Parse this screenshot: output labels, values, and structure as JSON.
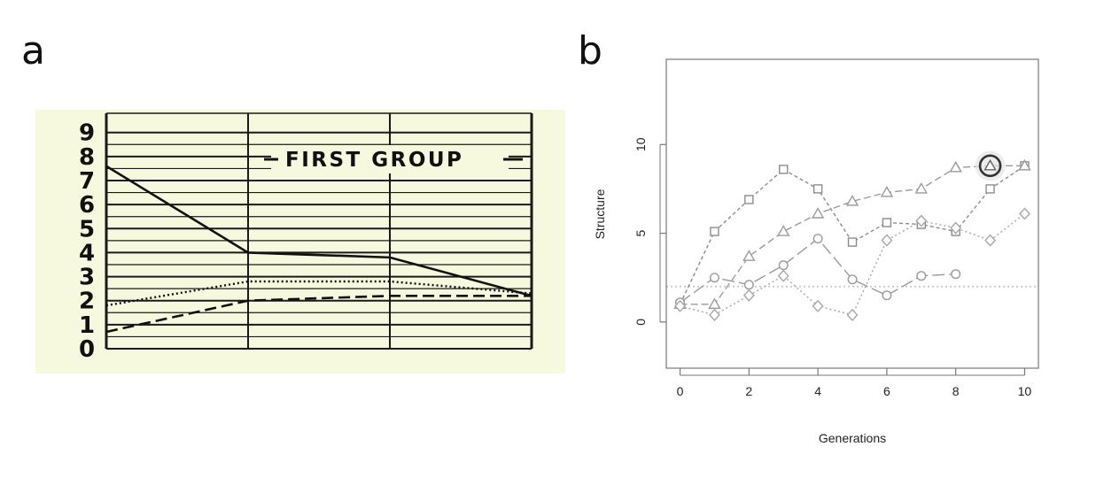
{
  "panels": {
    "a": "a",
    "b": "b"
  },
  "chart_data": [
    {
      "panel": "a",
      "type": "line",
      "title": "FIRST GROUP",
      "xlabel": "",
      "ylabel": "",
      "ylim": [
        0,
        9.8
      ],
      "y_ticks": [
        "0",
        "1",
        "2",
        "3",
        "4",
        "5",
        "6",
        "7",
        "8",
        "9"
      ],
      "x_columns": 3,
      "grid": true,
      "background": "#f6f9dd",
      "series": [
        {
          "style": "solid",
          "x": [
            0,
            1,
            2,
            3
          ],
          "values": [
            7.6,
            4.0,
            3.8,
            2.2
          ]
        },
        {
          "style": "dotted",
          "x": [
            0,
            1,
            2,
            3
          ],
          "values": [
            1.8,
            2.8,
            2.8,
            2.3
          ]
        },
        {
          "style": "dashed",
          "x": [
            0,
            1,
            2,
            3
          ],
          "values": [
            0.7,
            2.0,
            2.2,
            2.2
          ]
        }
      ]
    },
    {
      "panel": "b",
      "type": "line",
      "title": "",
      "xlabel": "Generations",
      "ylabel": "Structure",
      "xlim": [
        -0.4,
        10.4
      ],
      "ylim": [
        -2.6,
        14.8
      ],
      "x_ticks": [
        "0",
        "2",
        "4",
        "6",
        "8",
        "10"
      ],
      "y_ticks": [
        "0",
        "5",
        "10"
      ],
      "reference_line": 2,
      "grid": false,
      "series": [
        {
          "marker": "square",
          "color": "#8c8c8c",
          "dash": "4,3",
          "x": [
            0,
            1,
            2,
            3,
            4,
            5,
            6,
            7,
            8,
            9,
            10
          ],
          "values": [
            1.0,
            5.1,
            6.9,
            8.6,
            7.5,
            4.5,
            5.6,
            5.5,
            5.1,
            7.5,
            8.8
          ]
        },
        {
          "marker": "triangle",
          "color": "#9a9a9a",
          "dash": "8,4",
          "x": [
            0,
            1,
            2,
            3,
            4,
            5,
            6,
            7,
            8,
            9,
            10
          ],
          "values": [
            1.0,
            1.0,
            3.7,
            5.1,
            6.1,
            6.8,
            7.3,
            7.5,
            8.7,
            8.8,
            8.8
          ]
        },
        {
          "marker": "circle",
          "color": "#9a9a9a",
          "dash": "14,5",
          "x": [
            0,
            1,
            2,
            3,
            4,
            5,
            6,
            7,
            8
          ],
          "values": [
            1.1,
            2.5,
            2.1,
            3.2,
            4.7,
            2.4,
            1.5,
            2.6,
            2.7
          ]
        },
        {
          "marker": "diamond",
          "color": "#a6a6a6",
          "dash": "2,3",
          "x": [
            0,
            1,
            2,
            3,
            4,
            5,
            6,
            7,
            8,
            9,
            10
          ],
          "values": [
            0.9,
            0.4,
            1.5,
            2.6,
            0.9,
            0.4,
            4.6,
            5.7,
            5.3,
            4.6,
            6.1
          ]
        }
      ],
      "highlight": {
        "x": 9,
        "y": 8.8
      }
    }
  ]
}
